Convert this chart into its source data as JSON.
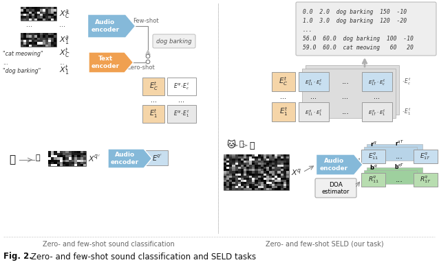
{
  "bg_color": "#ffffff",
  "audio_enc_color": "#85b9d9",
  "text_enc_color": "#f0a050",
  "matrix_orange": "#f5d5a8",
  "matrix_blue": "#c8dff0",
  "matrix_green": "#b8ddb0",
  "matrix_gray_light": "#e8e8e8",
  "matrix_white": "#ffffff",
  "arrow_gray": "#aaaaaa",
  "text_dark": "#333333",
  "text_gray": "#666666",
  "ann_bg": "#f0f0f0",
  "ann_border": "#cccccc",
  "eq_block_color": "#c8dff0",
  "annotation_lines": [
    "0.0  2.0  dog barking  150  -10",
    "1.0  3.0  dog barking  120  -20",
    "...",
    "56.0  60.0  dog barking  100  -10",
    "59.0  60.0  cat meowing   60   20"
  ],
  "label_left": "Zero- and few-shot sound classification",
  "label_right": "Zero- and few-shot SELD (our task)",
  "fig_label": "Fig. 2.",
  "fig_caption": "Zero- and few-shot sound classification and SELD tasks"
}
